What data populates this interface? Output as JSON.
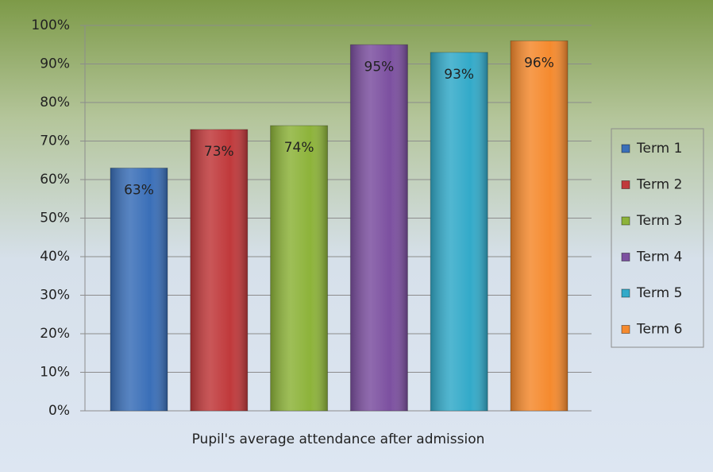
{
  "chart_data": {
    "type": "bar",
    "categories": [
      "Pupil's average attendance after admission"
    ],
    "series": [
      {
        "name": "Term 1",
        "color": "#3a6fb8",
        "values": [
          63
        ],
        "value_labels": [
          "63%"
        ]
      },
      {
        "name": "Term 2",
        "color": "#c0393b",
        "values": [
          73
        ],
        "value_labels": [
          "73%"
        ]
      },
      {
        "name": "Term 3",
        "color": "#8db33a",
        "values": [
          74
        ],
        "value_labels": [
          "74%"
        ]
      },
      {
        "name": "Term 4",
        "color": "#7c50a0",
        "values": [
          95
        ],
        "value_labels": [
          "95%"
        ]
      },
      {
        "name": "Term 5",
        "color": "#33aac9",
        "values": [
          93
        ],
        "value_labels": [
          "93%"
        ]
      },
      {
        "name": "Term 6",
        "color": "#f58a2e",
        "values": [
          96
        ],
        "value_labels": [
          "96%"
        ]
      }
    ],
    "ylim": [
      0,
      100
    ],
    "yticks": [
      {
        "value": 0,
        "label": "0%"
      },
      {
        "value": 10,
        "label": "10%"
      },
      {
        "value": 20,
        "label": "20%"
      },
      {
        "value": 30,
        "label": "30%"
      },
      {
        "value": 40,
        "label": "40%"
      },
      {
        "value": 50,
        "label": "50%"
      },
      {
        "value": 60,
        "label": "60%"
      },
      {
        "value": 70,
        "label": "70%"
      },
      {
        "value": 80,
        "label": "80%"
      },
      {
        "value": 90,
        "label": "90%"
      },
      {
        "value": 100,
        "label": "100%"
      }
    ],
    "grid": true,
    "legend": "right"
  }
}
